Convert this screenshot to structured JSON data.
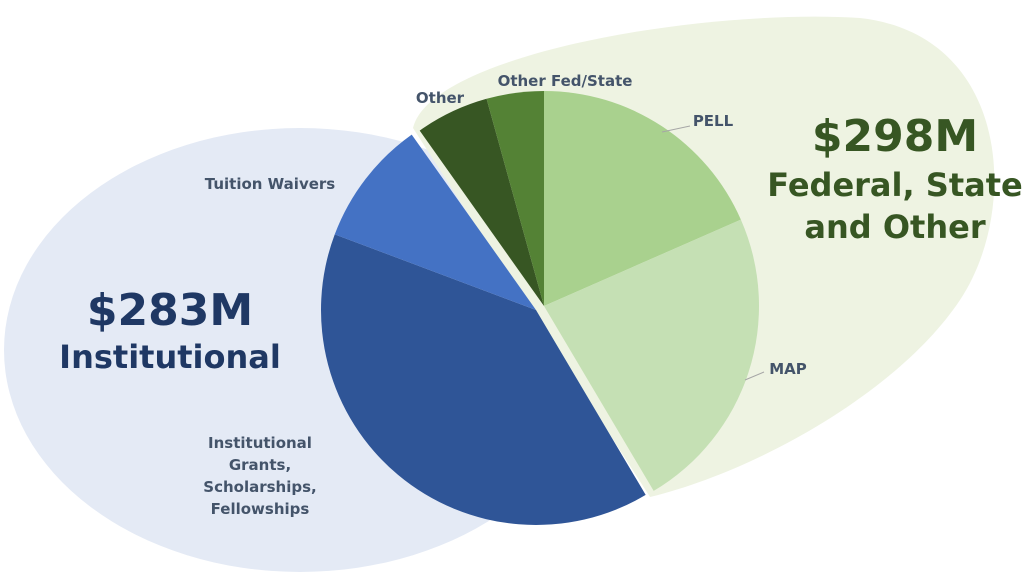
{
  "chart_data": {
    "type": "pie",
    "categories": [
      "PELL",
      "MAP",
      "Institutional Grants, Scholarships, Fellowships",
      "Tuition Waivers",
      "Other",
      "Other Fed/State"
    ],
    "values": [
      107,
      134,
      228,
      55,
      32,
      25
    ],
    "colors": [
      "#a9d18e",
      "#c5e0b4",
      "#2f5597",
      "#4472c4",
      "#375623",
      "#548235"
    ],
    "annotations": [
      {
        "value": "$283M",
        "label": "Institutional"
      },
      {
        "value": "$298M",
        "label": "Federal, State and Other"
      }
    ]
  }
}
